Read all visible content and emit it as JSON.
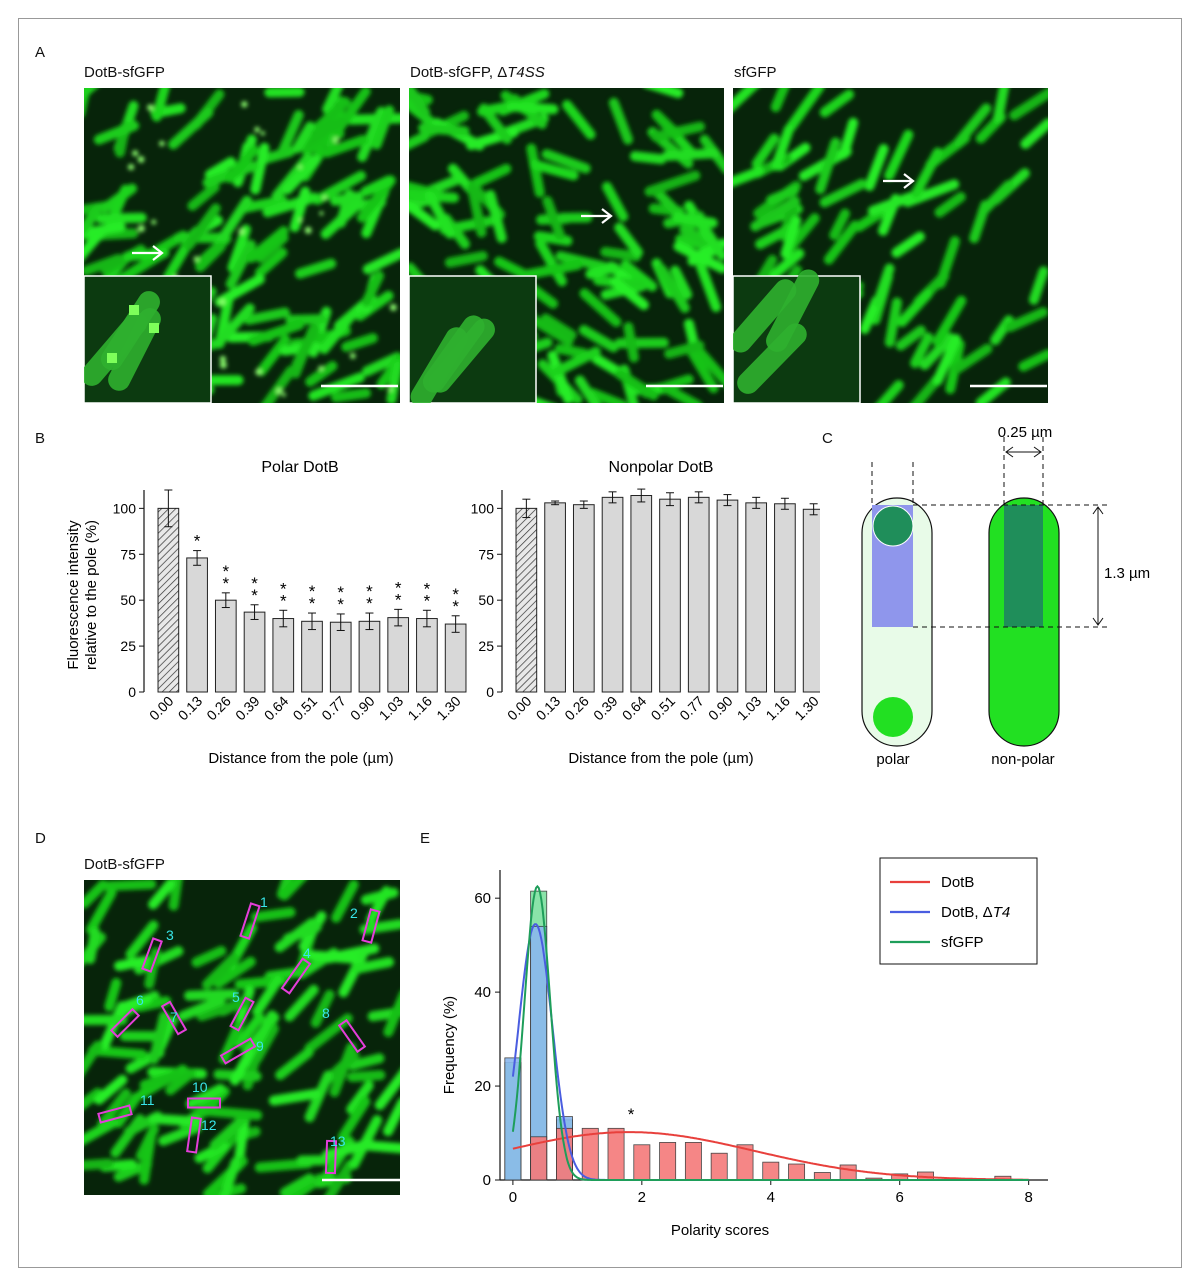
{
  "panels": {
    "A": {
      "label": "A",
      "images": [
        {
          "title_plain": "DotB-sfGFP",
          "title_suffix": ""
        },
        {
          "title_plain": "DotB-sfGFP, Δ",
          "title_suffix": "T4SS"
        },
        {
          "title_plain": "sfGFP",
          "title_suffix": ""
        }
      ]
    },
    "B": {
      "label": "B",
      "charts": [
        {
          "title": "Polar DotB",
          "ylabel_line1": "Fluorescence intensity",
          "ylabel_line2": "relative to the pole (%)",
          "xlabel": "Distance from the pole (µm)"
        },
        {
          "title": "Nonpolar DotB",
          "xlabel": "Distance from the pole (µm)"
        }
      ]
    },
    "C": {
      "label": "C",
      "width_label": "0.25 µm",
      "height_label": "1.3 µm",
      "polar_label": "polar",
      "nonpolar_label": "non-polar"
    },
    "D": {
      "label": "D",
      "title": "DotB-sfGFP",
      "rois": [
        "1",
        "2",
        "3",
        "4",
        "5",
        "6",
        "7",
        "8",
        "9",
        "10",
        "11",
        "12",
        "13"
      ]
    },
    "E": {
      "label": "E",
      "xlabel": "Polarity scores",
      "ylabel": "Frequency (%)",
      "star": "*",
      "legend": [
        {
          "name_plain": "DotB",
          "name_suffix": "",
          "color": "#e8403c"
        },
        {
          "name_plain": "DotB, Δ",
          "name_suffix": "T4",
          "color": "#4a5de0"
        },
        {
          "name_plain": "sfGFP",
          "name_suffix": "",
          "color": "#1e9e5a"
        }
      ]
    }
  },
  "chart_data": [
    {
      "type": "bar",
      "title": "Polar DotB",
      "categories": [
        "0.00",
        "0.13",
        "0.26",
        "0.39",
        "0.64",
        "0.51",
        "0.77",
        "0.90",
        "1.03",
        "1.16",
        "1.30"
      ],
      "values": [
        100,
        73,
        50,
        43.5,
        40,
        38.5,
        38,
        38.5,
        40.5,
        40,
        37
      ],
      "errors": [
        10,
        4,
        4,
        4,
        4.5,
        4.5,
        4.5,
        4.5,
        4.5,
        4.5,
        4.5
      ],
      "significance": [
        "",
        "*",
        "**",
        "**",
        "**",
        "**",
        "**",
        "**",
        "**",
        "**",
        "**"
      ],
      "ylim": [
        0,
        110
      ],
      "yticks": [
        0,
        25,
        50,
        75,
        100
      ],
      "xlabel": "Distance from the pole (µm)",
      "ylabel": "Fluorescence intensity relative to the pole (%)"
    },
    {
      "type": "bar",
      "title": "Nonpolar DotB",
      "categories": [
        "0.00",
        "0.13",
        "0.26",
        "0.39",
        "0.64",
        "0.51",
        "0.77",
        "0.90",
        "1.03",
        "1.16",
        "1.30"
      ],
      "values": [
        100,
        103,
        102,
        106,
        107,
        105,
        106,
        104.5,
        103,
        102.5,
        99.5
      ],
      "errors": [
        5,
        1,
        2,
        3,
        3.5,
        3.5,
        3,
        3,
        3,
        3,
        3
      ],
      "ylim": [
        0,
        110
      ],
      "yticks": [
        0,
        25,
        50,
        75,
        100
      ],
      "xlabel": "Distance from the pole (µm)"
    },
    {
      "type": "bar",
      "xlabel": "Polarity scores",
      "ylabel": "Frequency (%)",
      "xlim": [
        -0.2,
        8.3
      ],
      "ylim": [
        0,
        66
      ],
      "xticks": [
        0,
        2,
        4,
        6,
        8
      ],
      "yticks": [
        0,
        20,
        40,
        60
      ],
      "bin_width": 0.25,
      "series": [
        {
          "name": "sfGFP",
          "color": "#7ee0a0",
          "bins": [
            [
              0,
              25
            ],
            [
              0.4,
              61.5
            ],
            [
              0.8,
              12.8
            ]
          ]
        },
        {
          "name": "DotB, ΔT4",
          "color": "#8ab8ee",
          "bins": [
            [
              0,
              26
            ],
            [
              0.4,
              54
            ],
            [
              0.8,
              13.5
            ]
          ]
        },
        {
          "name": "DotB",
          "color": "#f57a7a",
          "bins": [
            [
              0.4,
              9.2
            ],
            [
              0.8,
              11
            ],
            [
              1.2,
              11
            ],
            [
              1.6,
              11
            ],
            [
              2.0,
              7.5
            ],
            [
              2.4,
              8
            ],
            [
              2.8,
              8
            ],
            [
              3.2,
              5.7
            ],
            [
              3.6,
              7.5
            ],
            [
              4.0,
              3.8
            ],
            [
              4.4,
              3.4
            ],
            [
              4.8,
              1.6
            ],
            [
              5.2,
              3.2
            ],
            [
              5.6,
              0.4
            ],
            [
              6.0,
              1.3
            ],
            [
              6.4,
              1.7
            ],
            [
              7.2,
              0.3
            ],
            [
              7.6,
              0.8
            ]
          ]
        }
      ],
      "fits": [
        {
          "name": "DotB",
          "mu": 1.8,
          "sigma": 1.95,
          "amp": 10.2,
          "base": 0
        },
        {
          "name": "DotB, ΔT4",
          "mu": 0.35,
          "sigma": 0.26,
          "amp": 54.5,
          "base": 0
        },
        {
          "name": "sfGFP",
          "mu": 0.38,
          "sigma": 0.2,
          "amp": 62.5,
          "base": 0
        }
      ]
    }
  ]
}
